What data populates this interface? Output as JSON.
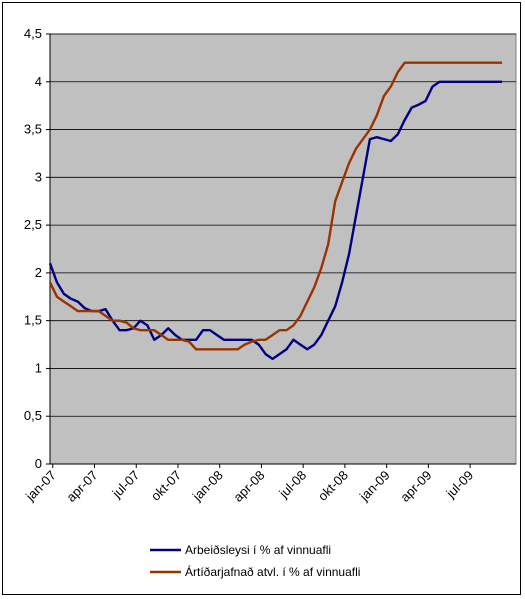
{
  "chart_data": {
    "type": "line",
    "title": "",
    "xlabel": "",
    "ylabel": "",
    "ylim": [
      0,
      4.5
    ],
    "yticks": [
      "0",
      "0,5",
      "1",
      "1,5",
      "2",
      "2,5",
      "3",
      "3,5",
      "4",
      "4,5"
    ],
    "x_tick_labels": [
      "jan-07",
      "apr-07",
      "jul-07",
      "okt-07",
      "jan-08",
      "apr-08",
      "jul-08",
      "okt-08",
      "jan-09",
      "apr-09",
      "jul-09"
    ],
    "grid": "horizontal",
    "plot_background": "#c0c0c0",
    "legend_position": "bottom",
    "series": [
      {
        "name": "Arbeiðsleysi í % af vinnuafli",
        "color": "#000080",
        "x": [
          0,
          0.5,
          1,
          1.5,
          2,
          2.5,
          3,
          3.5,
          4,
          4.5,
          5,
          5.5,
          6,
          6.5,
          7,
          7.5,
          8,
          8.5,
          9,
          9.5,
          10,
          10.5,
          11,
          11.5,
          12,
          12.5,
          13,
          13.5,
          14,
          14.5,
          15,
          15.5,
          16,
          16.5,
          17,
          17.5,
          18,
          18.5,
          19,
          19.5,
          20,
          20.5,
          21,
          21.5,
          22,
          22.5,
          23,
          23.5,
          24,
          24.5,
          25,
          25.5,
          26,
          26.5,
          27,
          27.5,
          28,
          28.5,
          29,
          29.5,
          30,
          30.5,
          31,
          31.5,
          32,
          32.5
        ],
        "values": [
          2.1,
          1.9,
          1.78,
          1.73,
          1.7,
          1.63,
          1.6,
          1.6,
          1.62,
          1.5,
          1.4,
          1.4,
          1.42,
          1.5,
          1.45,
          1.3,
          1.35,
          1.42,
          1.35,
          1.3,
          1.3,
          1.3,
          1.4,
          1.4,
          1.35,
          1.3,
          1.3,
          1.3,
          1.3,
          1.3,
          1.25,
          1.15,
          1.1,
          1.15,
          1.2,
          1.3,
          1.25,
          1.2,
          1.25,
          1.35,
          1.5,
          1.65,
          1.9,
          2.2,
          2.6,
          3.0,
          3.4,
          3.42,
          3.4,
          3.38,
          3.45,
          3.6,
          3.73,
          3.76,
          3.8,
          3.95,
          4.0,
          4.0,
          4.0,
          4.0,
          4.0,
          4.0,
          4.0,
          4.0,
          4.0,
          4.0
        ]
      },
      {
        "name": "Ártíðarjafnað atvl. í % af vinnuafli",
        "color": "#993300",
        "x": [
          0,
          0.5,
          1,
          1.5,
          2,
          2.5,
          3,
          3.5,
          4,
          4.5,
          5,
          5.5,
          6,
          6.5,
          7,
          7.5,
          8,
          8.5,
          9,
          9.5,
          10,
          10.5,
          11,
          11.5,
          12,
          12.5,
          13,
          13.5,
          14,
          14.5,
          15,
          15.5,
          16,
          16.5,
          17,
          17.5,
          18,
          18.5,
          19,
          19.5,
          20,
          20.5,
          21,
          21.5,
          22,
          22.5,
          23,
          23.5,
          24,
          24.5,
          25,
          25.5,
          26,
          26.5,
          27,
          27.5,
          28,
          28.5,
          29,
          29.5,
          30,
          30.5,
          31,
          31.5,
          32,
          32.5
        ],
        "values": [
          1.9,
          1.75,
          1.7,
          1.65,
          1.6,
          1.6,
          1.6,
          1.6,
          1.55,
          1.5,
          1.5,
          1.48,
          1.42,
          1.4,
          1.4,
          1.4,
          1.35,
          1.3,
          1.3,
          1.3,
          1.28,
          1.2,
          1.2,
          1.2,
          1.2,
          1.2,
          1.2,
          1.2,
          1.25,
          1.28,
          1.3,
          1.3,
          1.35,
          1.4,
          1.4,
          1.45,
          1.55,
          1.7,
          1.85,
          2.05,
          2.3,
          2.75,
          2.95,
          3.15,
          3.3,
          3.4,
          3.5,
          3.65,
          3.85,
          3.95,
          4.1,
          4.2,
          4.2,
          4.2,
          4.2,
          4.2,
          4.2,
          4.2,
          4.2,
          4.2,
          4.2,
          4.2,
          4.2,
          4.2,
          4.2,
          4.2
        ]
      }
    ]
  }
}
